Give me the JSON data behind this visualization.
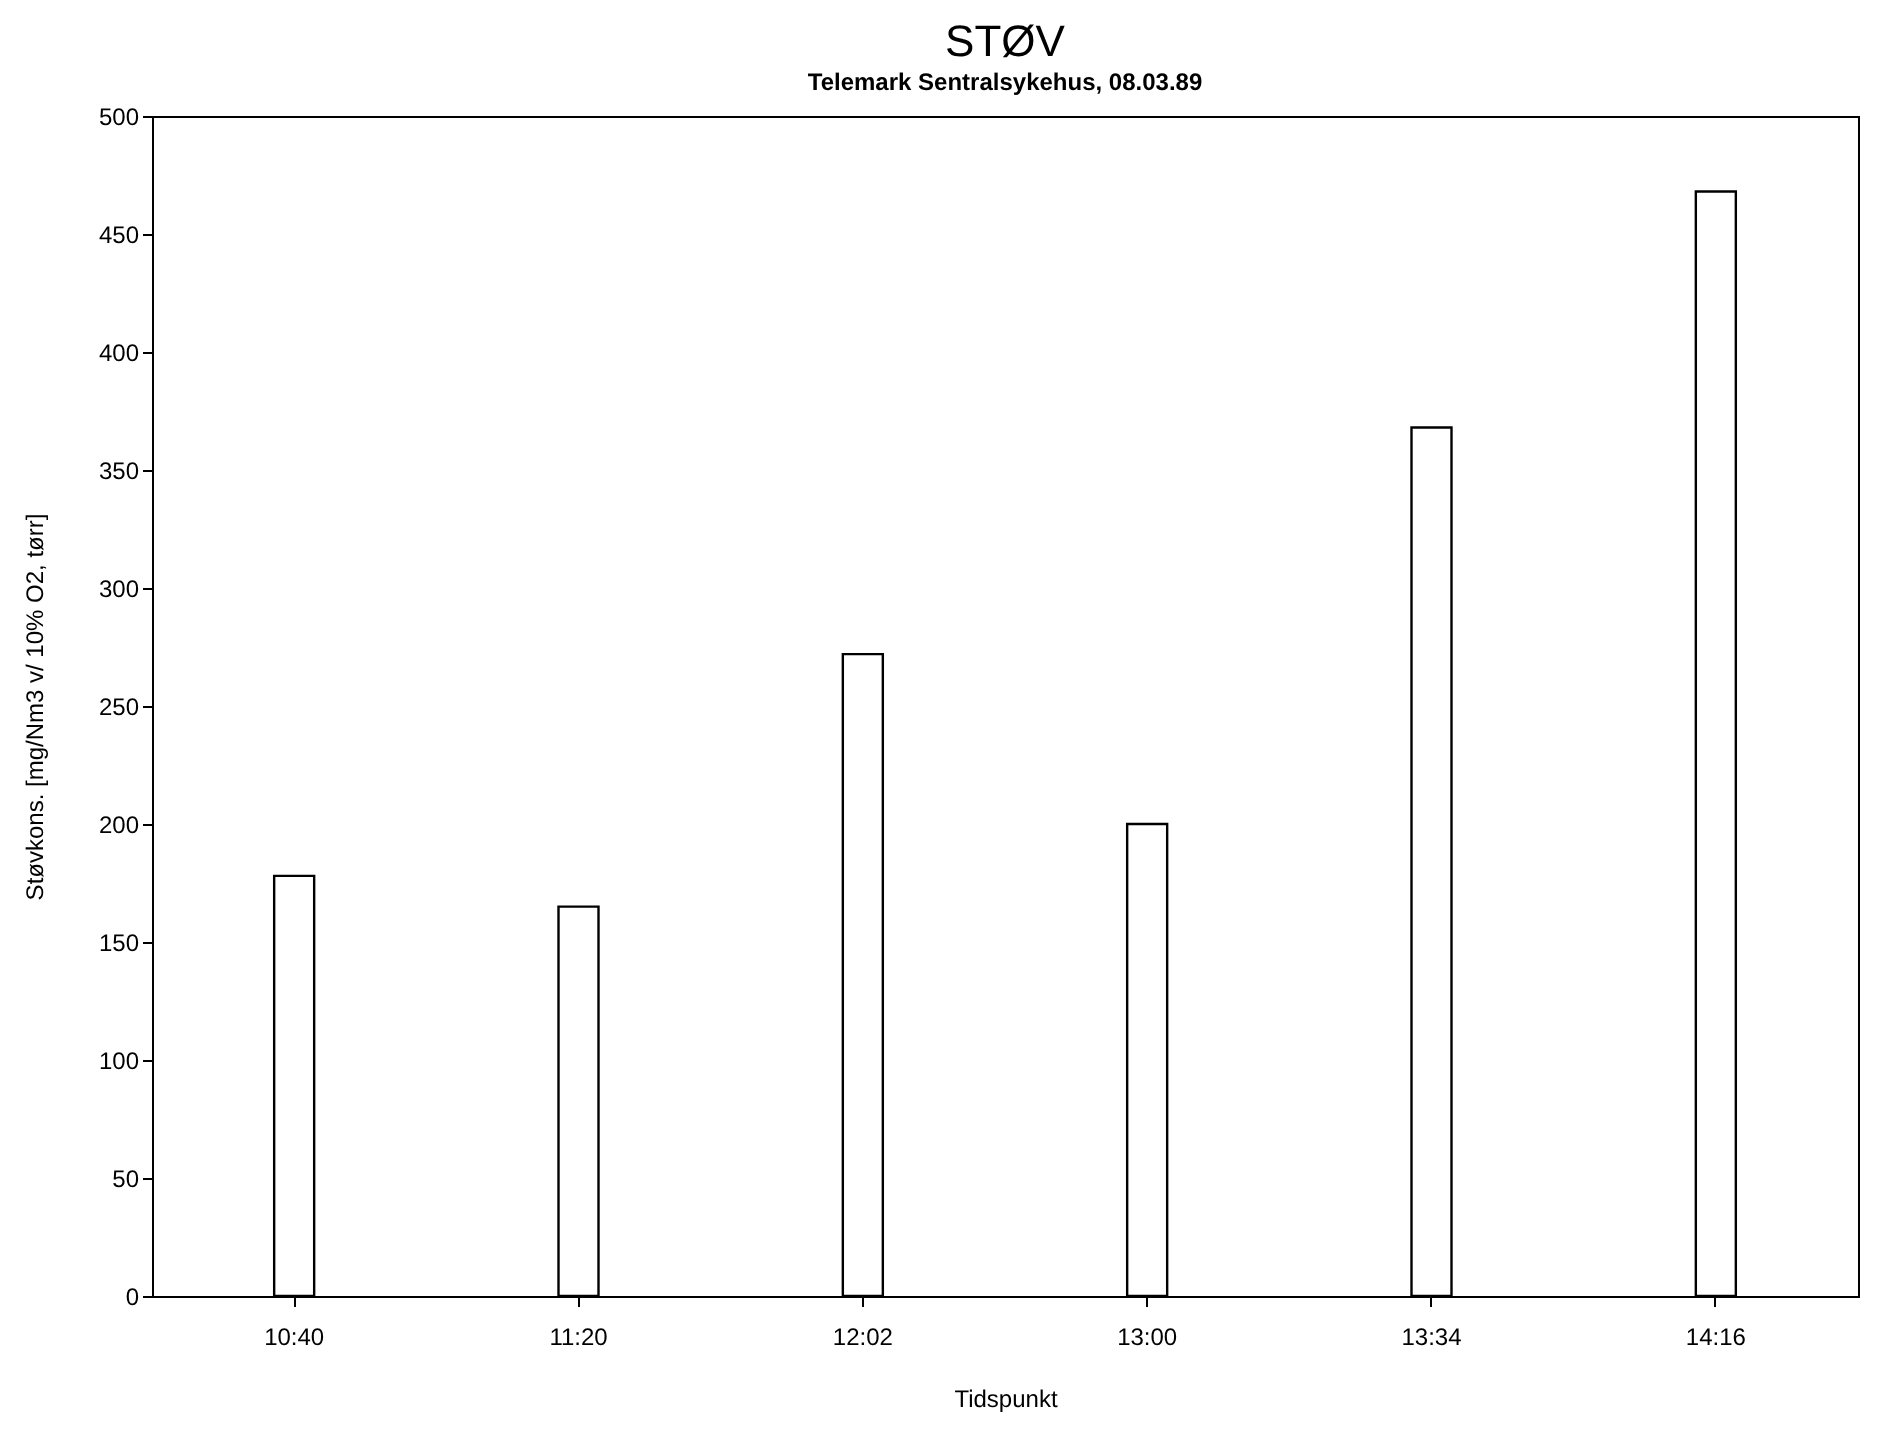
{
  "chart_data": {
    "type": "bar",
    "title": "STØV",
    "subtitle": "Telemark Sentralsykehus, 08.03.89",
    "xlabel": "Tidspunkt",
    "ylabel": "Støvkons. [mg/Nm3 v/ 10% O2, tørr]",
    "categories": [
      "10:40",
      "11:20",
      "12:02",
      "13:00",
      "13:34",
      "14:16"
    ],
    "values": [
      178,
      165,
      272,
      200,
      368,
      468
    ],
    "color": "#ffffff",
    "ylim": [
      0,
      500
    ],
    "yticks": [
      0,
      50,
      100,
      150,
      200,
      250,
      300,
      350,
      400,
      450,
      500
    ],
    "grid": false
  }
}
